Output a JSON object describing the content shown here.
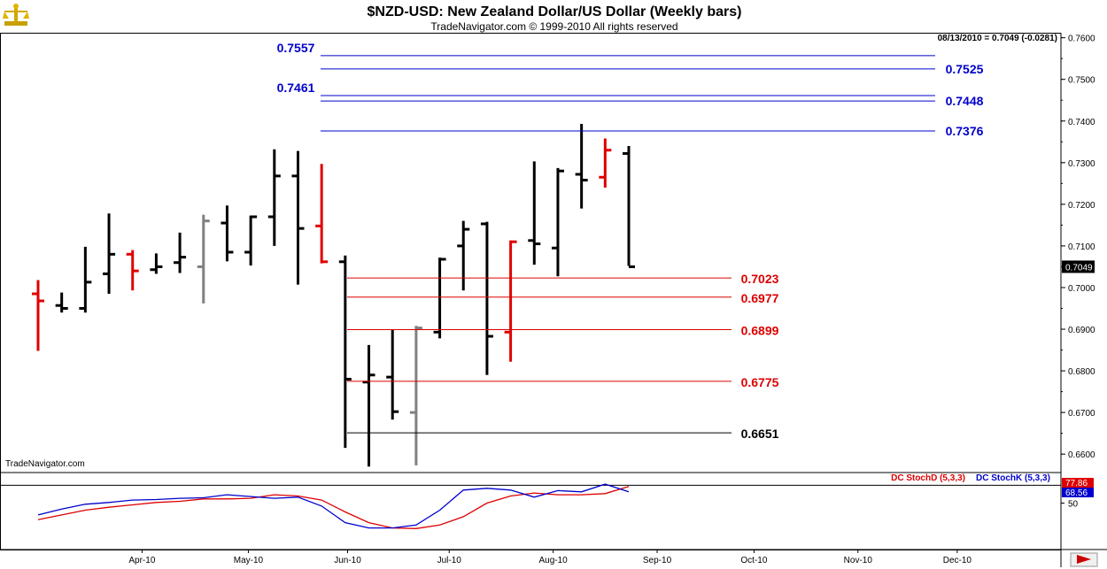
{
  "chart_data": [
    {
      "type": "bar",
      "subtype": "ohlc-weekly",
      "title": "$NZD-USD:  New Zealand Dollar/US Dollar  (Weekly bars)",
      "subtitle": "TradeNavigator.com © 1999-2010 All rights reserved",
      "watermark": "TradeNavigator.com",
      "readout": "08/13/2010 = 0.7049 (-0.0281)",
      "last_value_label": "0.7049",
      "ylim": [
        0.656,
        0.7612
      ],
      "y_ticks": [
        "0.7600",
        "0.7500",
        "0.7400",
        "0.7300",
        "0.7200",
        "0.7100",
        "0.7000",
        "0.6900",
        "0.6800",
        "0.6700",
        "0.6600"
      ],
      "x_labels": [
        "Apr-10",
        "May-10",
        "Jun-10",
        "Jul-10",
        "Aug-10",
        "Sep-10",
        "Oct-10",
        "Nov-10",
        "Dec-10"
      ],
      "x_label_weeks": [
        4.4,
        8.9,
        13.1,
        17.4,
        21.8,
        26.2,
        30.3,
        34.7,
        38.9
      ],
      "colors": {
        "up": "#000000",
        "down": "#e00000",
        "neutral": "#808080",
        "hi_level": "#0000cc",
        "lo_level": "#dd0000",
        "stop": "#000000"
      },
      "bars": [
        {
          "w": 0,
          "o": 0.6985,
          "h": 0.7018,
          "l": 0.6848,
          "c": 0.6968,
          "color": "red"
        },
        {
          "w": 1,
          "o": 0.6957,
          "h": 0.6988,
          "l": 0.694,
          "c": 0.695,
          "color": "black"
        },
        {
          "w": 2,
          "o": 0.695,
          "h": 0.7098,
          "l": 0.694,
          "c": 0.7013,
          "color": "black"
        },
        {
          "w": 3,
          "o": 0.7033,
          "h": 0.7178,
          "l": 0.6985,
          "c": 0.708,
          "color": "black"
        },
        {
          "w": 4,
          "o": 0.708,
          "h": 0.709,
          "l": 0.6993,
          "c": 0.704,
          "color": "red"
        },
        {
          "w": 5,
          "o": 0.7043,
          "h": 0.7082,
          "l": 0.7033,
          "c": 0.705,
          "color": "black"
        },
        {
          "w": 6,
          "o": 0.706,
          "h": 0.7132,
          "l": 0.7035,
          "c": 0.7073,
          "color": "black"
        },
        {
          "w": 7,
          "o": 0.705,
          "h": 0.7175,
          "l": 0.6962,
          "c": 0.716,
          "color": "gray"
        },
        {
          "w": 8,
          "o": 0.7155,
          "h": 0.7197,
          "l": 0.7063,
          "c": 0.7085,
          "color": "black"
        },
        {
          "w": 9,
          "o": 0.7085,
          "h": 0.7173,
          "l": 0.7053,
          "c": 0.717,
          "color": "black"
        },
        {
          "w": 10,
          "o": 0.717,
          "h": 0.7332,
          "l": 0.71,
          "c": 0.7268,
          "color": "black"
        },
        {
          "w": 11,
          "o": 0.7268,
          "h": 0.7328,
          "l": 0.7007,
          "c": 0.7142,
          "color": "black"
        },
        {
          "w": 12,
          "o": 0.7148,
          "h": 0.7297,
          "l": 0.7058,
          "c": 0.7062,
          "color": "red"
        },
        {
          "w": 13,
          "o": 0.7062,
          "h": 0.7077,
          "l": 0.6615,
          "c": 0.678,
          "color": "black"
        },
        {
          "w": 14,
          "o": 0.6773,
          "h": 0.6862,
          "l": 0.657,
          "c": 0.679,
          "color": "black"
        },
        {
          "w": 15,
          "o": 0.6785,
          "h": 0.69,
          "l": 0.6683,
          "c": 0.6702,
          "color": "black"
        },
        {
          "w": 16,
          "o": 0.67,
          "h": 0.6908,
          "l": 0.6573,
          "c": 0.6903,
          "color": "gray"
        },
        {
          "w": 17,
          "o": 0.6893,
          "h": 0.7072,
          "l": 0.6878,
          "c": 0.7068,
          "color": "black"
        },
        {
          "w": 18,
          "o": 0.71,
          "h": 0.716,
          "l": 0.6993,
          "c": 0.714,
          "color": "black"
        },
        {
          "w": 19,
          "o": 0.7153,
          "h": 0.7158,
          "l": 0.679,
          "c": 0.6883,
          "color": "black"
        },
        {
          "w": 20,
          "o": 0.6893,
          "h": 0.7113,
          "l": 0.6822,
          "c": 0.711,
          "color": "red"
        },
        {
          "w": 21,
          "o": 0.7113,
          "h": 0.7303,
          "l": 0.7055,
          "c": 0.7105,
          "color": "black"
        },
        {
          "w": 22,
          "o": 0.7095,
          "h": 0.7287,
          "l": 0.7027,
          "c": 0.728,
          "color": "black"
        },
        {
          "w": 23,
          "o": 0.7272,
          "h": 0.7393,
          "l": 0.719,
          "c": 0.7258,
          "color": "black"
        },
        {
          "w": 24,
          "o": 0.7265,
          "h": 0.7358,
          "l": 0.724,
          "c": 0.733,
          "color": "red"
        },
        {
          "w": 25,
          "o": 0.7322,
          "h": 0.734,
          "l": 0.7052,
          "c": 0.705,
          "color": "black"
        }
      ],
      "levels_upper": [
        {
          "label": "0.7557",
          "value": 0.7557,
          "side": "left"
        },
        {
          "label": "0.7525",
          "value": 0.7525,
          "side": "right"
        },
        {
          "label": "0.7461",
          "value": 0.7461,
          "side": "left"
        },
        {
          "label": "0.7448",
          "value": 0.7448,
          "side": "right"
        },
        {
          "label": "0.7376",
          "value": 0.7376,
          "side": "right"
        }
      ],
      "levels_lower": [
        {
          "label": "0.7023",
          "value": 0.7023,
          "color": "red"
        },
        {
          "label": "0.6977",
          "value": 0.6977,
          "color": "red"
        },
        {
          "label": "0.6899",
          "value": 0.6899,
          "color": "red"
        },
        {
          "label": "0.6775",
          "value": 0.6775,
          "color": "red"
        },
        {
          "label": "0.6651",
          "value": 0.6651,
          "color": "black"
        }
      ]
    },
    {
      "type": "line",
      "name": "stochastic",
      "ylim": [
        0,
        100
      ],
      "y_tick_labels": [
        "50"
      ],
      "ref_line": 80,
      "series": [
        {
          "name": "DC StochD (5,3,3)",
          "color": "#dd0000",
          "last_label": "77.86",
          "values": [
            22,
            30,
            38,
            43,
            47,
            51,
            53,
            57,
            57,
            58,
            64,
            62,
            55,
            35,
            17,
            8,
            7,
            13,
            27,
            50,
            62,
            67,
            64,
            64,
            66,
            78
          ]
        },
        {
          "name": "DC StochK (5,3,3)",
          "color": "#0000cc",
          "last_label": "68.56",
          "values": [
            30,
            40,
            48,
            51,
            55,
            56,
            58,
            59,
            64,
            61,
            58,
            60,
            45,
            17,
            8,
            8,
            13,
            38,
            72,
            75,
            72,
            60,
            71,
            69,
            82,
            69
          ]
        }
      ]
    }
  ]
}
